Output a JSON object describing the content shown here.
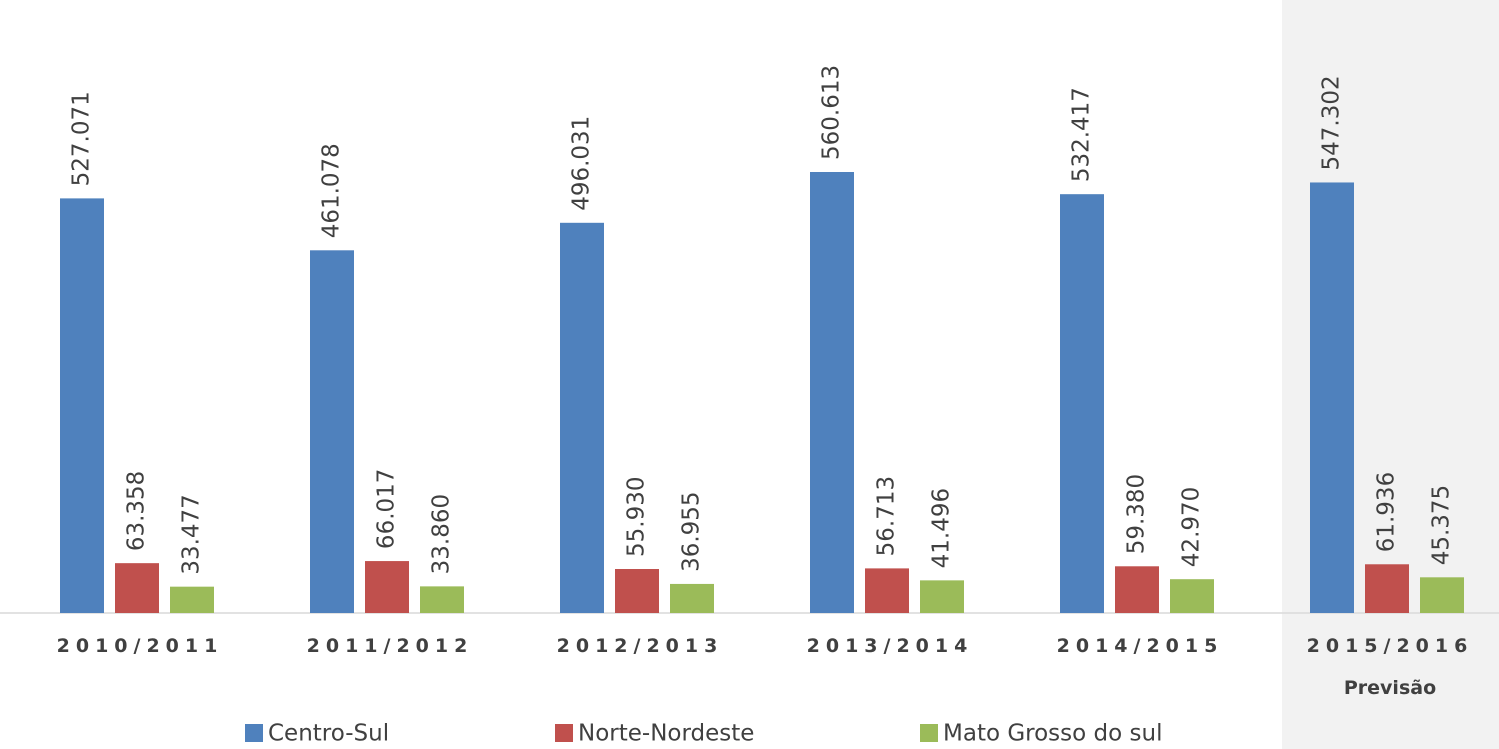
{
  "chart_data": {
    "type": "bar",
    "categories": [
      "2010/2011",
      "2011/2012",
      "2012/2013",
      "2013/2014",
      "2014/2015",
      "2015/2016"
    ],
    "annotations": [
      {
        "category": 5,
        "text": "Previsão"
      }
    ],
    "series": [
      {
        "name": "Centro-Sul",
        "color": "#4f81bd",
        "values": [
          527.071,
          461.078,
          496.031,
          560.613,
          532.417,
          547.302
        ],
        "value_labels": [
          "527.071",
          "461.078",
          "496.031",
          "560.613",
          "532.417",
          "547.302"
        ]
      },
      {
        "name": "Norte-Nordeste",
        "color": "#c0504d",
        "values": [
          63.358,
          66.017,
          55.93,
          56.713,
          59.38,
          61.936
        ],
        "value_labels": [
          "63.358",
          "66.017",
          "55.930",
          "56.713",
          "59.380",
          "61.936"
        ]
      },
      {
        "name": "Mato Grosso do sul",
        "color": "#9bbb59",
        "values": [
          33.477,
          33.86,
          36.955,
          41.496,
          42.97,
          45.375
        ],
        "value_labels": [
          "33.477",
          "33.860",
          "36.955",
          "41.496",
          "42.970",
          "45.375"
        ]
      }
    ]
  }
}
